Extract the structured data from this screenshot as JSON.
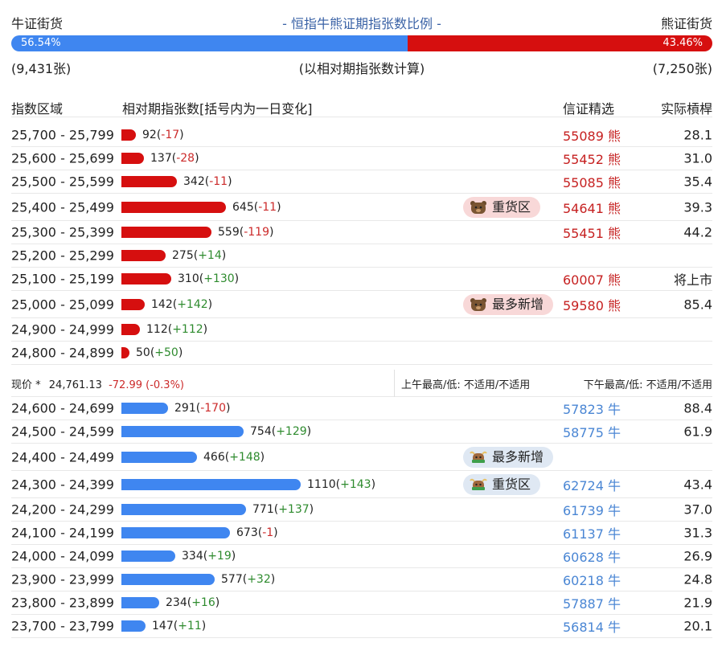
{
  "header": {
    "bull_label": "牛证街货",
    "title": "- 恒指牛熊证期指张数比例 -",
    "bear_label": "熊证街货"
  },
  "ratio": {
    "bull_pct_text": "56.54%",
    "bear_pct_text": "43.46%",
    "bull_fraction": 0.5654
  },
  "counts": {
    "bull": "(9,431张)",
    "note": "(以相对期指张数计算)",
    "bear": "(7,250张)"
  },
  "columns": {
    "range": "指数区域",
    "contracts": "相对期指张数[括号内为一日变化]",
    "pick": "信证精选",
    "leverage": "实际槓桿"
  },
  "colors": {
    "bear": "#d60f0f",
    "bull": "#3f86f0"
  },
  "bear_rows": [
    {
      "range": "25,700 - 25,799",
      "count": 92,
      "count_text": "92",
      "change": "-17",
      "code": "55089",
      "side": "熊",
      "street": "28.1"
    },
    {
      "range": "25,600 - 25,699",
      "count": 137,
      "count_text": "137",
      "change": "-28",
      "code": "55452",
      "side": "熊",
      "street": "31.0"
    },
    {
      "range": "25,500 - 25,599",
      "count": 342,
      "count_text": "342",
      "change": "-11",
      "code": "55085",
      "side": "熊",
      "street": "35.4"
    },
    {
      "range": "25,400 - 25,499",
      "count": 645,
      "count_text": "645",
      "change": "-11",
      "code": "54641",
      "side": "熊",
      "street": "39.3",
      "badge": "重货区"
    },
    {
      "range": "25,300 - 25,399",
      "count": 559,
      "count_text": "559",
      "change": "-119",
      "code": "55451",
      "side": "熊",
      "street": "44.2"
    },
    {
      "range": "25,200 - 25,299",
      "count": 275,
      "count_text": "275",
      "change": "+14",
      "code": "",
      "side": "",
      "street": ""
    },
    {
      "range": "25,100 - 25,199",
      "count": 310,
      "count_text": "310",
      "change": "+130",
      "code": "60007",
      "side": "熊",
      "street": "将上市"
    },
    {
      "range": "25,000 - 25,099",
      "count": 142,
      "count_text": "142",
      "change": "+142",
      "code": "59580",
      "side": "熊",
      "street": "85.4",
      "badge": "最多新增"
    },
    {
      "range": "24,900 - 24,999",
      "count": 112,
      "count_text": "112",
      "change": "+112",
      "code": "",
      "side": "",
      "street": ""
    },
    {
      "range": "24,800 - 24,899",
      "count": 50,
      "count_text": "50",
      "change": "+50",
      "code": "",
      "side": "",
      "street": ""
    }
  ],
  "current": {
    "label": "现价 *",
    "price": "24,761.13",
    "change": "-72.99 (-0.3%)",
    "am": "上午最高/低: 不适用/不适用",
    "pm": "下午最高/低: 不适用/不适用"
  },
  "bull_rows": [
    {
      "range": "24,600 - 24,699",
      "count": 291,
      "count_text": "291",
      "change": "-170",
      "code": "57823",
      "side": "牛",
      "street": "88.4"
    },
    {
      "range": "24,500 - 24,599",
      "count": 754,
      "count_text": "754",
      "change": "+129",
      "code": "58775",
      "side": "牛",
      "street": "61.9"
    },
    {
      "range": "24,400 - 24,499",
      "count": 466,
      "count_text": "466",
      "change": "+148",
      "code": "",
      "side": "",
      "street": "",
      "badge": "最多新增"
    },
    {
      "range": "24,300 - 24,399",
      "count": 1110,
      "count_text": "1110",
      "change": "+143",
      "code": "62724",
      "side": "牛",
      "street": "43.4",
      "badge": "重货区"
    },
    {
      "range": "24,200 - 24,299",
      "count": 771,
      "count_text": "771",
      "change": "+137",
      "code": "61739",
      "side": "牛",
      "street": "37.0"
    },
    {
      "range": "24,100 - 24,199",
      "count": 673,
      "count_text": "673",
      "change": "-1",
      "code": "61137",
      "side": "牛",
      "street": "31.3"
    },
    {
      "range": "24,000 - 24,099",
      "count": 334,
      "count_text": "334",
      "change": "+19",
      "code": "60628",
      "side": "牛",
      "street": "26.9"
    },
    {
      "range": "23,900 - 23,999",
      "count": 577,
      "count_text": "577",
      "change": "+32",
      "code": "60218",
      "side": "牛",
      "street": "24.8"
    },
    {
      "range": "23,800 - 23,899",
      "count": 234,
      "count_text": "234",
      "change": "+16",
      "code": "57887",
      "side": "牛",
      "street": "21.9"
    },
    {
      "range": "23,700 - 23,799",
      "count": 147,
      "count_text": "147",
      "change": "+11",
      "code": "56814",
      "side": "牛",
      "street": "20.1"
    }
  ]
}
